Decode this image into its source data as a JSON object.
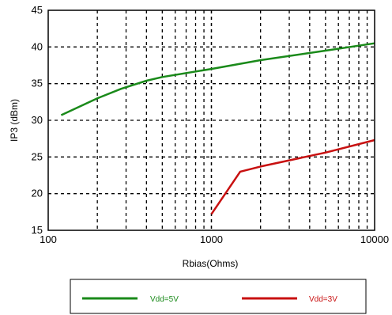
{
  "chart_data": {
    "type": "line",
    "xscale": "log",
    "xlim": [
      100,
      10000
    ],
    "ylim": [
      15,
      45
    ],
    "xticks": [
      100,
      1000,
      10000
    ],
    "xtick_labels": [
      "100",
      "1000",
      "10000"
    ],
    "yticks": [
      15,
      20,
      25,
      30,
      35,
      40,
      45
    ],
    "ytick_labels": [
      "15",
      "20",
      "25",
      "30",
      "35",
      "40",
      "45"
    ],
    "xlabel": "Rbias(Ohms)",
    "ylabel": "IP3 (dBm)",
    "grid": true,
    "legend_position": "bottom",
    "series": [
      {
        "name": "Vdd=5V",
        "color": "#1a8a1a",
        "x": [
          120,
          200,
          280,
          400,
          500,
          1000,
          2000,
          5000,
          10000
        ],
        "y": [
          30.7,
          33.0,
          34.3,
          35.4,
          35.9,
          37.0,
          38.2,
          39.5,
          40.5
        ]
      },
      {
        "name": "Vdd=3V",
        "color": "#c81010",
        "x": [
          1000,
          1500,
          2000,
          5000,
          10000
        ],
        "y": [
          17.2,
          23.0,
          23.7,
          25.6,
          27.3
        ]
      }
    ]
  }
}
